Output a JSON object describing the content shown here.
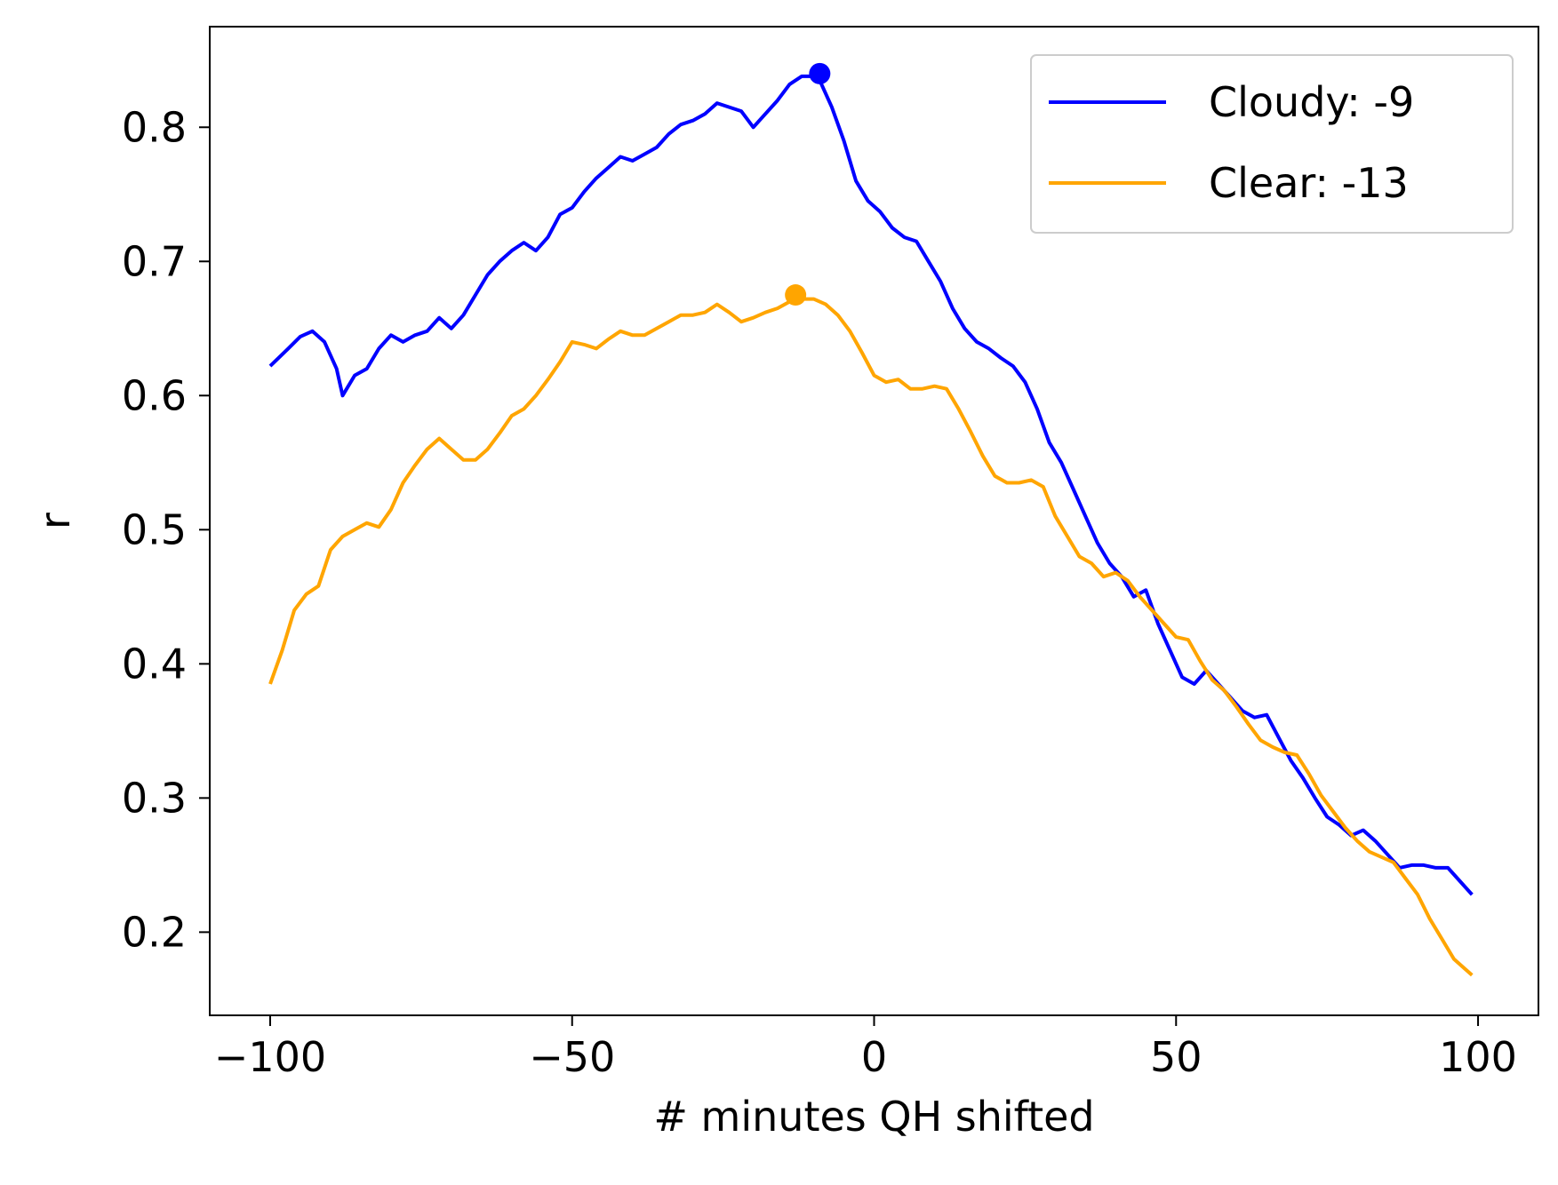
{
  "chart_data": {
    "type": "line",
    "xlabel": "# minutes QH shifted",
    "ylabel": "r",
    "xlim": [
      -110,
      110
    ],
    "ylim": [
      0.138,
      0.875
    ],
    "xticks": [
      -100,
      -50,
      0,
      50,
      100
    ],
    "xtick_labels": [
      "−100",
      "−50",
      "0",
      "50",
      "100"
    ],
    "yticks": [
      0.2,
      0.3,
      0.4,
      0.5,
      0.6,
      0.7,
      0.8
    ],
    "ytick_labels": [
      "0.2",
      "0.3",
      "0.4",
      "0.5",
      "0.6",
      "0.7",
      "0.8"
    ],
    "grid": false,
    "legend_position": "top-right",
    "series": [
      {
        "name": "Cloudy: -9",
        "color": "#0000ff",
        "x": [
          -100,
          -97,
          -95,
          -93,
          -91,
          -89,
          -88,
          -86,
          -84,
          -82,
          -80,
          -78,
          -76,
          -74,
          -72,
          -70,
          -68,
          -66,
          -64,
          -62,
          -60,
          -58,
          -56,
          -54,
          -52,
          -50,
          -48,
          -46,
          -44,
          -42,
          -40,
          -38,
          -36,
          -34,
          -32,
          -30,
          -28,
          -26,
          -24,
          -22,
          -20,
          -18,
          -16,
          -14,
          -12,
          -10,
          -9,
          -7,
          -5,
          -3,
          -1,
          1,
          3,
          5,
          7,
          9,
          11,
          13,
          15,
          17,
          19,
          21,
          23,
          25,
          27,
          29,
          31,
          33,
          35,
          37,
          39,
          41,
          43,
          45,
          47,
          49,
          51,
          53,
          55,
          57,
          59,
          61,
          63,
          65,
          67,
          69,
          71,
          73,
          75,
          77,
          79,
          81,
          83,
          85,
          87,
          89,
          91,
          93,
          95,
          97,
          99
        ],
        "y": [
          0.622,
          0.635,
          0.644,
          0.648,
          0.64,
          0.62,
          0.6,
          0.615,
          0.62,
          0.635,
          0.645,
          0.64,
          0.645,
          0.648,
          0.658,
          0.65,
          0.66,
          0.675,
          0.69,
          0.7,
          0.708,
          0.714,
          0.708,
          0.718,
          0.735,
          0.74,
          0.752,
          0.762,
          0.77,
          0.778,
          0.775,
          0.78,
          0.785,
          0.795,
          0.802,
          0.805,
          0.81,
          0.818,
          0.815,
          0.812,
          0.8,
          0.81,
          0.82,
          0.832,
          0.838,
          0.838,
          0.835,
          0.815,
          0.79,
          0.76,
          0.745,
          0.737,
          0.725,
          0.718,
          0.715,
          0.7,
          0.685,
          0.665,
          0.65,
          0.64,
          0.635,
          0.628,
          0.622,
          0.61,
          0.59,
          0.565,
          0.55,
          0.53,
          0.51,
          0.49,
          0.475,
          0.465,
          0.45,
          0.455,
          0.43,
          0.41,
          0.39,
          0.385,
          0.395,
          0.385,
          0.375,
          0.365,
          0.36,
          0.362,
          0.345,
          0.328,
          0.315,
          0.3,
          0.286,
          0.28,
          0.272,
          0.276,
          0.268,
          0.258,
          0.248,
          0.25,
          0.25,
          0.248,
          0.248,
          0.238,
          0.228
        ]
      },
      {
        "name": "Clear: -13",
        "color": "#ffa500",
        "x": [
          -100,
          -98,
          -96,
          -94,
          -92,
          -90,
          -88,
          -86,
          -84,
          -82,
          -80,
          -78,
          -76,
          -74,
          -72,
          -70,
          -68,
          -66,
          -64,
          -62,
          -60,
          -58,
          -56,
          -54,
          -52,
          -50,
          -48,
          -46,
          -44,
          -42,
          -40,
          -38,
          -36,
          -34,
          -32,
          -30,
          -28,
          -26,
          -24,
          -22,
          -20,
          -18,
          -16,
          -14,
          -13,
          -12,
          -10,
          -8,
          -6,
          -4,
          -2,
          0,
          2,
          4,
          6,
          8,
          10,
          12,
          14,
          16,
          18,
          20,
          22,
          24,
          26,
          28,
          30,
          32,
          34,
          36,
          38,
          40,
          42,
          44,
          46,
          48,
          50,
          52,
          54,
          56,
          58,
          60,
          62,
          64,
          66,
          68,
          70,
          72,
          74,
          76,
          78,
          80,
          82,
          84,
          86,
          88,
          90,
          92,
          94,
          96,
          98,
          99
        ],
        "y": [
          0.385,
          0.41,
          0.44,
          0.452,
          0.458,
          0.485,
          0.495,
          0.5,
          0.505,
          0.502,
          0.515,
          0.535,
          0.548,
          0.56,
          0.568,
          0.56,
          0.552,
          0.552,
          0.56,
          0.572,
          0.585,
          0.59,
          0.6,
          0.612,
          0.625,
          0.64,
          0.638,
          0.635,
          0.642,
          0.648,
          0.645,
          0.645,
          0.65,
          0.655,
          0.66,
          0.66,
          0.662,
          0.668,
          0.662,
          0.655,
          0.658,
          0.662,
          0.665,
          0.67,
          0.675,
          0.672,
          0.672,
          0.668,
          0.66,
          0.648,
          0.632,
          0.615,
          0.61,
          0.612,
          0.605,
          0.605,
          0.607,
          0.605,
          0.59,
          0.573,
          0.555,
          0.54,
          0.535,
          0.535,
          0.537,
          0.532,
          0.51,
          0.495,
          0.48,
          0.475,
          0.465,
          0.468,
          0.462,
          0.45,
          0.44,
          0.43,
          0.42,
          0.418,
          0.402,
          0.388,
          0.38,
          0.368,
          0.355,
          0.343,
          0.338,
          0.334,
          0.332,
          0.318,
          0.302,
          0.29,
          0.278,
          0.268,
          0.26,
          0.256,
          0.252,
          0.24,
          0.228,
          0.21,
          0.195,
          0.18,
          0.172,
          0.168
        ]
      }
    ],
    "peaks": [
      {
        "name": "cloudy-peak",
        "x": -9,
        "y": 0.84,
        "color": "#0000ff"
      },
      {
        "name": "clear-peak",
        "x": -13,
        "y": 0.675,
        "color": "#ffa500"
      }
    ]
  }
}
